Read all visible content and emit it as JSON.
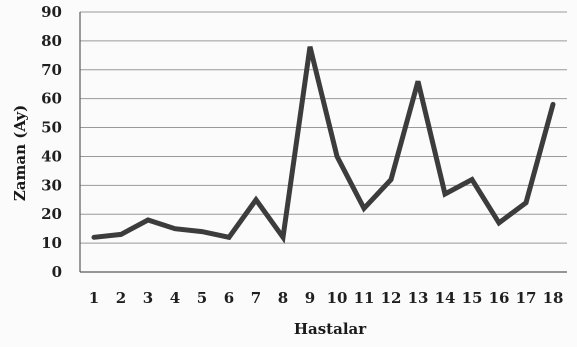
{
  "chart_data": {
    "type": "line",
    "title": "",
    "xlabel": "Hastalar",
    "ylabel": "Zaman (Ay)",
    "x": [
      1,
      2,
      3,
      4,
      5,
      6,
      7,
      8,
      9,
      10,
      11,
      12,
      13,
      14,
      15,
      16,
      17,
      18
    ],
    "x_tick_labels": [
      "1",
      "2",
      "3",
      "4",
      "5",
      "6",
      "7",
      "8",
      "9",
      "10",
      "11",
      "12",
      "13",
      "14",
      "15",
      "16",
      "17",
      "18"
    ],
    "series": [
      {
        "values": [
          12,
          13,
          18,
          15,
          14,
          12,
          25,
          12,
          78,
          40,
          22,
          32,
          66,
          27,
          32,
          17,
          24,
          58
        ],
        "color": "#3c3c3c"
      }
    ],
    "ylim": [
      0,
      90
    ],
    "y_ticks": [
      0,
      10,
      20,
      30,
      40,
      50,
      60,
      70,
      80,
      90
    ],
    "y_tick_labels": [
      "0",
      "10",
      "20",
      "30",
      "40",
      "50",
      "60",
      "70",
      "80",
      "90"
    ],
    "grid": "horizontal",
    "legend": "none",
    "colors": {
      "line": "#3c3c3c",
      "grid": "#9a9a9a",
      "text": "#1f1f1f"
    }
  }
}
